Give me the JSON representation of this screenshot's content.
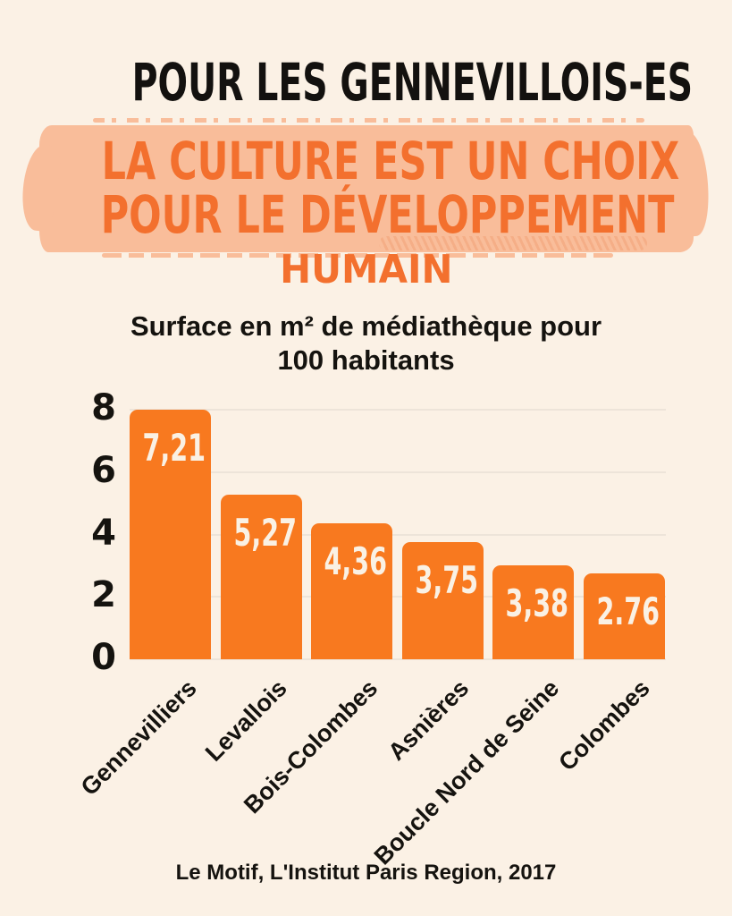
{
  "page": {
    "background": "#FBF1E5",
    "title": "POUR LES GENNEVILLOIS-ES",
    "highlight": {
      "line1": "LA CULTURE EST UN CHOIX",
      "line2": "POUR LE DÉVELOPPEMENT",
      "line3": "HUMAIN",
      "text_color": "#F3702E",
      "brush_color": "#F9BD9A"
    },
    "source": "Le Motif, L'Institut Paris Region, 2017"
  },
  "chart_data": {
    "type": "bar",
    "title": "Surface en m² de médiathèque pour 100 habitants",
    "title_lines": [
      "Surface en m² de médiathèque pour",
      "100 habitants"
    ],
    "categories": [
      "Gennevilliers",
      "Levallois",
      "Bois-Colombes",
      "Asnières",
      "Boucle Nord de Seine",
      "Colombes"
    ],
    "values": [
      7.21,
      5.27,
      4.36,
      3.75,
      3.38,
      2.76
    ],
    "value_labels": [
      "7,21",
      "5,27",
      "4,36",
      "3,75",
      "3,38",
      "2.76"
    ],
    "y_ticks": [
      0,
      2,
      4,
      6,
      8
    ],
    "ylim": [
      0,
      8
    ],
    "rendered_height_units": [
      8.0,
      5.27,
      4.36,
      3.75,
      3.02,
      2.76
    ],
    "grid": true,
    "legend": "none",
    "bar_color": "#F8791F",
    "gridline_color": "#EDE4D9",
    "value_label_color": "#FAF1E4",
    "xlabel": "",
    "ylabel": ""
  }
}
